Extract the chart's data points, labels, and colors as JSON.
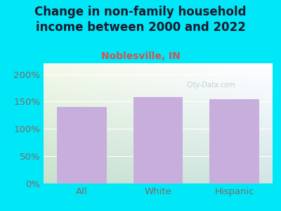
{
  "title": "Change in non-family household\nincome between 2000 and 2022",
  "subtitle": "Noblesville, IN",
  "categories": [
    "All",
    "White",
    "Hispanic"
  ],
  "values": [
    140,
    158,
    154
  ],
  "bar_color": "#c8aedd",
  "title_color": "#1a1a2e",
  "subtitle_color": "#cc5555",
  "tick_label_color": "#7a6a6a",
  "background_outer": "#00e8f8",
  "background_inner_topleft": "#e4f0e8",
  "background_inner_topright": "#dceef5",
  "background_inner_bottom": "#c8e8d0",
  "ylim": [
    0,
    220
  ],
  "yticks": [
    0,
    50,
    100,
    150,
    200
  ],
  "ytick_labels": [
    "0%",
    "50%",
    "100%",
    "150%",
    "200%"
  ],
  "title_fontsize": 12,
  "subtitle_fontsize": 10,
  "tick_fontsize": 9.5,
  "bar_width": 0.65,
  "watermark": "City-Data.com",
  "watermark_color": "#aabbcc",
  "watermark_alpha": 0.7
}
